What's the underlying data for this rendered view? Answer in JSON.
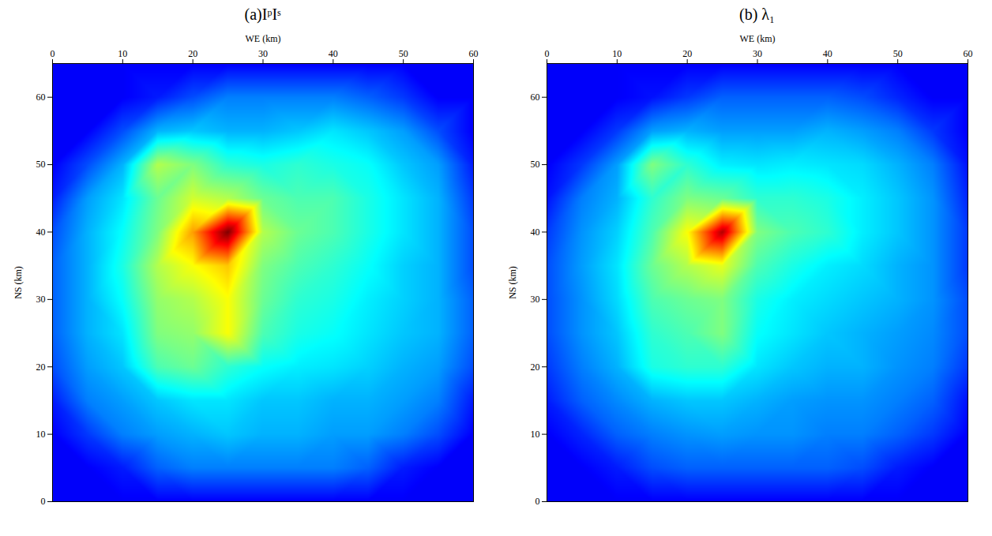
{
  "chart_data": [
    {
      "type": "heatmap",
      "title": "(a)IᵖIˢ",
      "x_label": "WE (km)",
      "y_label": "NS (km)",
      "color": "jet",
      "xlim": [
        0,
        60
      ],
      "ylim": [
        0,
        65
      ],
      "xticks": [
        0,
        10,
        20,
        30,
        40,
        50,
        60
      ],
      "yticks": [
        0,
        10,
        20,
        30,
        40,
        50,
        60
      ],
      "zlim": [
        0,
        1
      ],
      "x": [
        0,
        5,
        10,
        15,
        20,
        25,
        30,
        35,
        40,
        45,
        50,
        55,
        60
      ],
      "y": [
        0,
        5,
        10,
        15,
        20,
        25,
        30,
        35,
        40,
        45,
        50,
        55,
        60,
        65
      ],
      "values": [
        [
          0.12,
          0.12,
          0.12,
          0.12,
          0.12,
          0.12,
          0.12,
          0.12,
          0.12,
          0.12,
          0.12,
          0.12,
          0.12
        ],
        [
          0.12,
          0.12,
          0.15,
          0.22,
          0.25,
          0.25,
          0.25,
          0.25,
          0.25,
          0.22,
          0.15,
          0.12,
          0.12
        ],
        [
          0.12,
          0.18,
          0.25,
          0.28,
          0.3,
          0.32,
          0.3,
          0.3,
          0.28,
          0.28,
          0.25,
          0.2,
          0.12
        ],
        [
          0.15,
          0.25,
          0.28,
          0.32,
          0.35,
          0.35,
          0.32,
          0.32,
          0.3,
          0.3,
          0.28,
          0.25,
          0.15
        ],
        [
          0.2,
          0.28,
          0.32,
          0.45,
          0.48,
          0.42,
          0.38,
          0.36,
          0.35,
          0.33,
          0.3,
          0.28,
          0.2
        ],
        [
          0.22,
          0.3,
          0.35,
          0.5,
          0.52,
          0.62,
          0.45,
          0.4,
          0.38,
          0.35,
          0.32,
          0.3,
          0.22
        ],
        [
          0.22,
          0.3,
          0.38,
          0.52,
          0.55,
          0.62,
          0.48,
          0.42,
          0.4,
          0.36,
          0.33,
          0.3,
          0.22
        ],
        [
          0.22,
          0.3,
          0.4,
          0.55,
          0.62,
          0.68,
          0.5,
          0.45,
          0.42,
          0.38,
          0.33,
          0.3,
          0.2
        ],
        [
          0.2,
          0.3,
          0.38,
          0.5,
          0.72,
          1.0,
          0.55,
          0.48,
          0.45,
          0.4,
          0.35,
          0.3,
          0.2
        ],
        [
          0.15,
          0.28,
          0.35,
          0.48,
          0.58,
          0.55,
          0.48,
          0.45,
          0.45,
          0.4,
          0.35,
          0.3,
          0.18
        ],
        [
          0.12,
          0.2,
          0.3,
          0.55,
          0.5,
          0.42,
          0.4,
          0.42,
          0.4,
          0.38,
          0.32,
          0.28,
          0.15
        ],
        [
          0.12,
          0.12,
          0.2,
          0.3,
          0.32,
          0.3,
          0.3,
          0.32,
          0.35,
          0.32,
          0.28,
          0.2,
          0.12
        ],
        [
          0.12,
          0.12,
          0.12,
          0.15,
          0.2,
          0.25,
          0.25,
          0.25,
          0.25,
          0.22,
          0.18,
          0.12,
          0.12
        ],
        [
          0.12,
          0.12,
          0.12,
          0.12,
          0.12,
          0.12,
          0.12,
          0.12,
          0.12,
          0.12,
          0.12,
          0.12,
          0.12
        ]
      ]
    },
    {
      "type": "heatmap",
      "title": "(b) λ₁",
      "x_label": "WE (km)",
      "y_label": "NS (km)",
      "color": "jet",
      "xlim": [
        0,
        60
      ],
      "ylim": [
        0,
        65
      ],
      "xticks": [
        0,
        10,
        20,
        30,
        40,
        50,
        60
      ],
      "yticks": [
        0,
        10,
        20,
        30,
        40,
        50,
        60
      ],
      "zlim": [
        0,
        1
      ],
      "x": [
        0,
        5,
        10,
        15,
        20,
        25,
        30,
        35,
        40,
        45,
        50,
        55,
        60
      ],
      "y": [
        0,
        5,
        10,
        15,
        20,
        25,
        30,
        35,
        40,
        45,
        50,
        55,
        60,
        65
      ],
      "values": [
        [
          0.12,
          0.12,
          0.12,
          0.12,
          0.12,
          0.12,
          0.12,
          0.12,
          0.12,
          0.12,
          0.12,
          0.12,
          0.12
        ],
        [
          0.12,
          0.12,
          0.15,
          0.2,
          0.22,
          0.22,
          0.22,
          0.22,
          0.22,
          0.2,
          0.15,
          0.12,
          0.12
        ],
        [
          0.12,
          0.16,
          0.22,
          0.25,
          0.27,
          0.28,
          0.27,
          0.27,
          0.25,
          0.25,
          0.22,
          0.18,
          0.12
        ],
        [
          0.15,
          0.22,
          0.26,
          0.3,
          0.32,
          0.32,
          0.3,
          0.28,
          0.27,
          0.27,
          0.25,
          0.22,
          0.14
        ],
        [
          0.18,
          0.25,
          0.3,
          0.4,
          0.42,
          0.42,
          0.35,
          0.32,
          0.3,
          0.3,
          0.27,
          0.25,
          0.18
        ],
        [
          0.2,
          0.27,
          0.32,
          0.42,
          0.45,
          0.5,
          0.38,
          0.35,
          0.32,
          0.3,
          0.28,
          0.26,
          0.2
        ],
        [
          0.2,
          0.27,
          0.34,
          0.45,
          0.48,
          0.5,
          0.4,
          0.36,
          0.34,
          0.32,
          0.3,
          0.27,
          0.2
        ],
        [
          0.2,
          0.28,
          0.35,
          0.48,
          0.55,
          0.6,
          0.45,
          0.4,
          0.36,
          0.34,
          0.3,
          0.27,
          0.18
        ],
        [
          0.18,
          0.27,
          0.33,
          0.45,
          0.62,
          0.95,
          0.5,
          0.45,
          0.42,
          0.36,
          0.32,
          0.27,
          0.18
        ],
        [
          0.14,
          0.25,
          0.3,
          0.42,
          0.5,
          0.48,
          0.42,
          0.42,
          0.4,
          0.36,
          0.32,
          0.27,
          0.16
        ],
        [
          0.12,
          0.18,
          0.28,
          0.5,
          0.42,
          0.36,
          0.35,
          0.36,
          0.35,
          0.34,
          0.3,
          0.25,
          0.14
        ],
        [
          0.12,
          0.12,
          0.18,
          0.28,
          0.3,
          0.28,
          0.28,
          0.28,
          0.3,
          0.28,
          0.25,
          0.18,
          0.12
        ],
        [
          0.12,
          0.12,
          0.12,
          0.14,
          0.18,
          0.22,
          0.22,
          0.22,
          0.22,
          0.2,
          0.16,
          0.12,
          0.12
        ],
        [
          0.12,
          0.12,
          0.12,
          0.12,
          0.12,
          0.12,
          0.12,
          0.12,
          0.12,
          0.12,
          0.12,
          0.12,
          0.12
        ]
      ]
    }
  ]
}
